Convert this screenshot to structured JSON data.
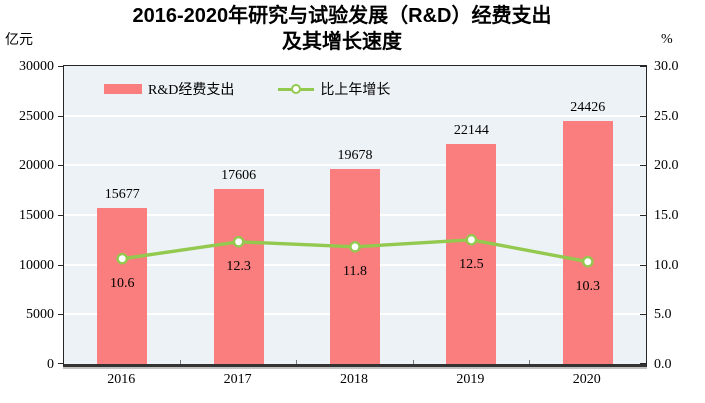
{
  "title": {
    "line1": "2016-2020年研究与试验发展（R&D）经费支出",
    "line2": "及其增长速度"
  },
  "axes": {
    "left_unit": "亿元",
    "right_unit": "%",
    "left_tick_labels": [
      "30000",
      "25000",
      "20000",
      "15000",
      "10000",
      "5000",
      "0"
    ],
    "right_tick_labels": [
      "30.0",
      "25.0",
      "20.0",
      "15.0",
      "10.0",
      "5.0",
      "0.0"
    ]
  },
  "legend": [
    {
      "label": "R&D经费支出",
      "type": "bar"
    },
    {
      "label": "比上年增长",
      "type": "line"
    }
  ],
  "colors": {
    "bar": "#FA7E7E",
    "line": "#92C94E",
    "marker_fill": "#FFFFFF",
    "plot_bg": "#EDF2F6",
    "gridline": "#FFFFFF",
    "axis": "#262626"
  },
  "chart_data": {
    "type": "bar+line",
    "title": "2016-2020年研究与试验发展（R&D）经费支出及其增长速度",
    "categories": [
      "2016",
      "2017",
      "2018",
      "2019",
      "2020"
    ],
    "series": [
      {
        "name": "R&D经费支出",
        "type": "bar",
        "axis": "left",
        "values": [
          15677,
          17606,
          19678,
          22144,
          24426
        ],
        "color": "#FA7E7E"
      },
      {
        "name": "比上年增长",
        "type": "line",
        "axis": "right",
        "values": [
          10.6,
          12.3,
          11.8,
          12.5,
          10.3
        ],
        "color": "#92C94E",
        "marker": "circle-white"
      }
    ],
    "left_ylabel": "亿元",
    "right_ylabel": "%",
    "left_ylim": [
      0,
      30000
    ],
    "right_ylim": [
      0,
      30
    ],
    "left_tick_step": 5000,
    "right_tick_step": 5,
    "grid": "horizontal",
    "legend_position": "top-left-inside",
    "value_labels": "above-bars",
    "pct_labels": "below-markers"
  }
}
